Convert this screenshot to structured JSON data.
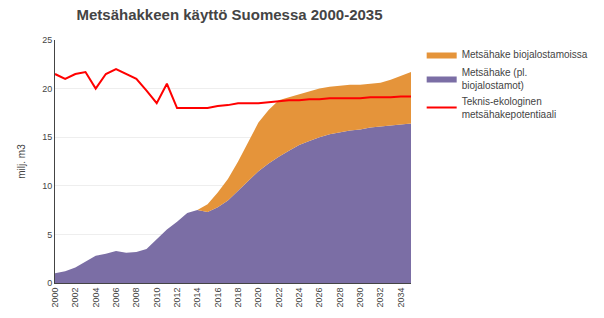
{
  "chart_data": {
    "type": "area",
    "title": "Metsähakkeen käyttö Suomessa 2000-2035",
    "ylabel": "milj. m3",
    "stacked": true,
    "x": [
      2000,
      2001,
      2002,
      2003,
      2004,
      2005,
      2006,
      2007,
      2008,
      2009,
      2010,
      2011,
      2012,
      2013,
      2014,
      2015,
      2016,
      2017,
      2018,
      2019,
      2020,
      2021,
      2022,
      2023,
      2024,
      2025,
      2026,
      2027,
      2028,
      2029,
      2030,
      2031,
      2032,
      2033,
      2034,
      2035
    ],
    "series": [
      {
        "name": "Metsähake (pl.\nbiojalostamot)",
        "type": "area",
        "color": "#7B6EA5",
        "values": [
          1.0,
          1.2,
          1.6,
          2.2,
          2.8,
          3.0,
          3.3,
          3.1,
          3.2,
          3.5,
          4.5,
          5.5,
          6.3,
          7.2,
          7.5,
          7.3,
          7.8,
          8.5,
          9.5,
          10.5,
          11.5,
          12.3,
          13.0,
          13.6,
          14.2,
          14.6,
          15.0,
          15.3,
          15.5,
          15.7,
          15.8,
          16.0,
          16.1,
          16.2,
          16.3,
          16.4
        ]
      },
      {
        "name": "Metsähake biojalostamoissa",
        "type": "area",
        "color": "#E5943A",
        "values": [
          0.0,
          0.0,
          0.0,
          0.0,
          0.0,
          0.0,
          0.0,
          0.0,
          0.0,
          0.0,
          0.0,
          0.0,
          0.0,
          0.0,
          0.0,
          0.8,
          1.5,
          2.2,
          3.0,
          4.0,
          5.0,
          5.5,
          5.8,
          5.5,
          5.2,
          5.1,
          5.0,
          4.9,
          4.8,
          4.7,
          4.6,
          4.5,
          4.5,
          4.7,
          5.0,
          5.3
        ]
      },
      {
        "name": "Teknis-ekologinen\nmetsähakepotentiaali",
        "type": "line",
        "color": "#FF0000",
        "values": [
          21.5,
          21.0,
          21.5,
          21.7,
          20.0,
          21.5,
          22.0,
          21.5,
          21.0,
          19.8,
          18.5,
          20.5,
          18.0,
          18.0,
          18.0,
          18.0,
          18.2,
          18.3,
          18.5,
          18.5,
          18.5,
          18.6,
          18.7,
          18.8,
          18.8,
          18.9,
          18.9,
          19.0,
          19.0,
          19.0,
          19.0,
          19.1,
          19.1,
          19.1,
          19.2,
          19.2
        ]
      }
    ],
    "xlim": [
      2000,
      2035
    ],
    "xticks": [
      2000,
      2002,
      2004,
      2006,
      2008,
      2010,
      2012,
      2014,
      2016,
      2018,
      2020,
      2022,
      2024,
      2026,
      2028,
      2030,
      2032,
      2034
    ],
    "ylim": [
      0,
      25
    ],
    "yticks": [
      0,
      5,
      10,
      15,
      20,
      25
    ],
    "grid": "y",
    "legend": "right"
  }
}
